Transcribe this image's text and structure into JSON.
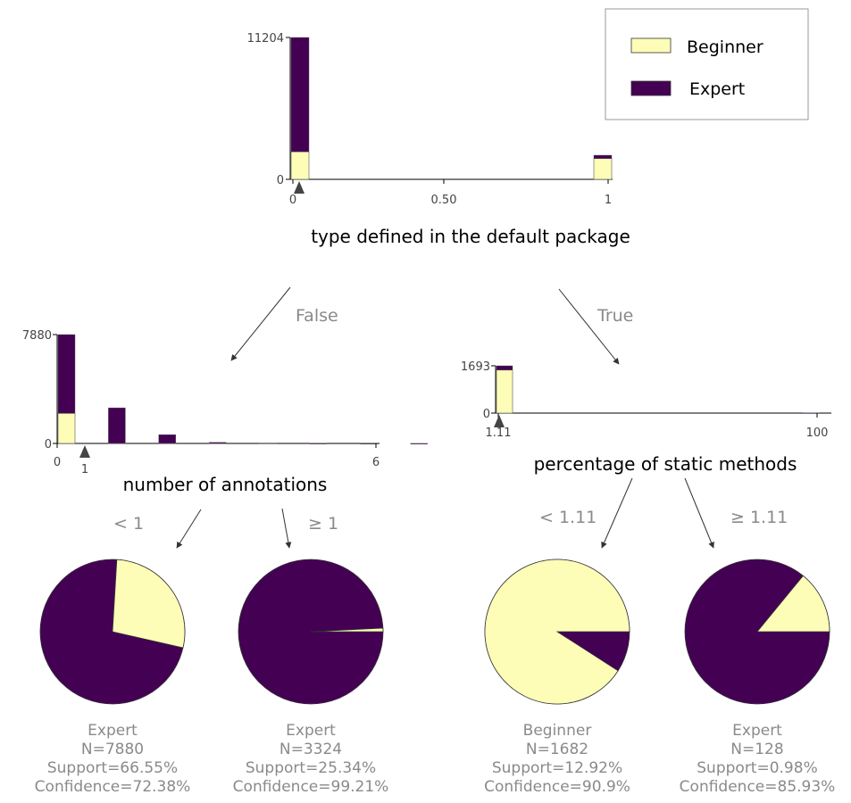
{
  "colors": {
    "beginner": "#fdfdb8",
    "expert": "#440154",
    "axis": "#000000",
    "edge_text": "#8a8a8a",
    "tick_text": "#444444",
    "marker": "#444444",
    "leaf_text": "#8a8a8a"
  },
  "legend": {
    "items": [
      {
        "label": "Beginner",
        "color": "#fdfdb8"
      },
      {
        "label": "Expert",
        "color": "#440154"
      }
    ]
  },
  "tree": {
    "root": {
      "feature_label": "type defined in the default package",
      "split_marker_label": "",
      "chart_data": {
        "type": "bar",
        "stacked": true,
        "x_ticks": [
          "0",
          "0.50",
          "1"
        ],
        "x_range": [
          0,
          1
        ],
        "y_ticks": [
          "0",
          "11204"
        ],
        "y_max": 11204,
        "split_value": 0.015,
        "bars": [
          {
            "x": 0,
            "beginner": 2180,
            "expert": 9024
          },
          {
            "x": 1,
            "beginner": 1643,
            "expert": 260
          }
        ]
      }
    },
    "left": {
      "edge_label": "False",
      "feature_label": "number of annotations",
      "split_marker_label": "1",
      "chart_data": {
        "type": "bar",
        "stacked": true,
        "x_ticks": [
          "0",
          "6"
        ],
        "x_range": [
          0,
          6
        ],
        "y_ticks": [
          "0",
          "7880"
        ],
        "y_max": 7880,
        "split_value": 1,
        "bars": [
          {
            "x": 0,
            "beginner": 2176,
            "expert": 5704
          },
          {
            "x": 2,
            "beginner": 8,
            "expert": 2570
          },
          {
            "x": 4,
            "beginner": 10,
            "expert": 626
          },
          {
            "x": 6,
            "beginner": 4,
            "expert": 70
          },
          {
            "x": 8,
            "beginner": 0,
            "expert": 25
          },
          {
            "x": 10,
            "beginner": 0,
            "expert": 12
          },
          {
            "x": 12,
            "beginner": 0,
            "expert": 6
          },
          {
            "x": 14,
            "beginner": 0,
            "expert": 4
          }
        ]
      }
    },
    "right": {
      "edge_label": "True",
      "feature_label": "percentage of static methods",
      "split_marker_label": "1.11",
      "chart_data": {
        "type": "bar",
        "stacked": true,
        "x_ticks": [
          "1.11",
          "100"
        ],
        "x_range": [
          0,
          100
        ],
        "y_ticks": [
          "0",
          "1693"
        ],
        "y_max": 1693,
        "split_value": 1.11,
        "bars": [
          {
            "x": 0,
            "beginner": 1541,
            "expert": 152
          },
          {
            "x": 96,
            "beginner": 0,
            "expert": 10
          }
        ]
      }
    },
    "leaves": [
      {
        "edge_label": "< 1",
        "class": "Expert",
        "n": "N=7880",
        "support": "Support=66.55%",
        "confidence": "Confidence=72.38%",
        "beginner_fraction": 0.2762
      },
      {
        "edge_label": "≥ 1",
        "class": "Expert",
        "n": "N=3324",
        "support": "Support=25.34%",
        "confidence": "Confidence=99.21%",
        "beginner_fraction": 0.0079
      },
      {
        "edge_label": "< 1.11",
        "class": "Beginner",
        "n": "N=1682",
        "support": "Support=12.92%",
        "confidence": "Confidence=90.9%",
        "beginner_fraction": 0.909
      },
      {
        "edge_label": "≥ 1.11",
        "class": "Expert",
        "n": "N=128",
        "support": "Support=0.98%",
        "confidence": "Confidence=85.93%",
        "beginner_fraction": 0.1407
      }
    ]
  }
}
